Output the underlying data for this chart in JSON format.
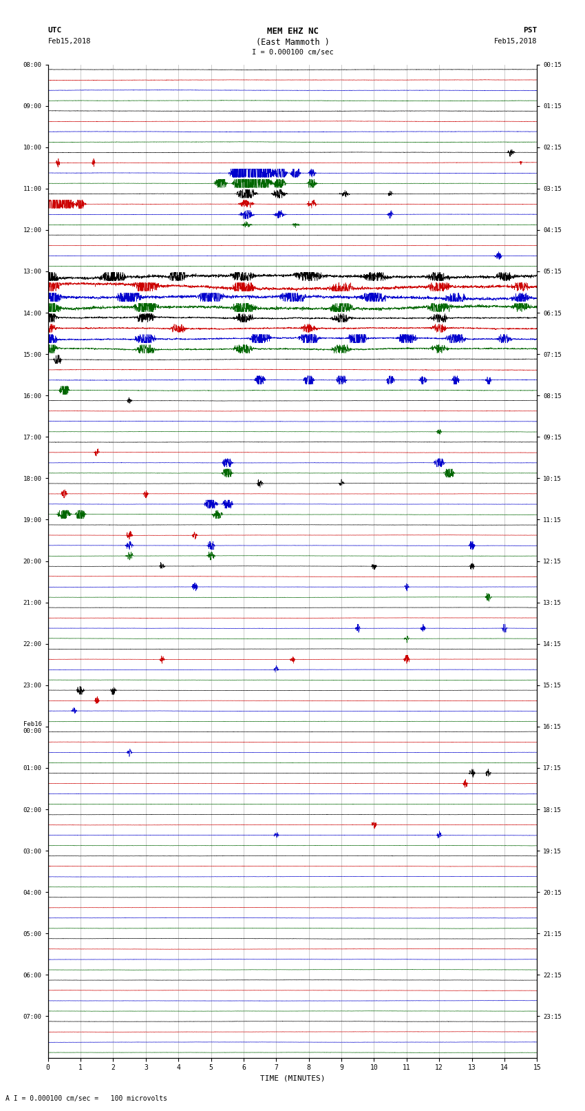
{
  "title_line1": "MEM EHZ NC",
  "title_line2": "(East Mammoth )",
  "scale_label": "I = 0.000100 cm/sec",
  "bottom_label": "A I = 0.000100 cm/sec =   100 microvolts",
  "xlabel": "TIME (MINUTES)",
  "utc_left": "UTC",
  "utc_date": "Feb15,2018",
  "pst_right": "PST",
  "pst_date": "Feb15,2018",
  "rows": 96,
  "colors": [
    "#000000",
    "#cc0000",
    "#0000cc",
    "#006600"
  ],
  "bg_color": "#ffffff",
  "grid_color": "#999999",
  "xmin": 0,
  "xmax": 15,
  "figwidth": 8.5,
  "figheight": 16.13,
  "left_times_utc": [
    "08:00",
    "",
    "",
    "",
    "09:00",
    "",
    "",
    "",
    "10:00",
    "",
    "",
    "",
    "11:00",
    "",
    "",
    "",
    "12:00",
    "",
    "",
    "",
    "13:00",
    "",
    "",
    "",
    "14:00",
    "",
    "",
    "",
    "15:00",
    "",
    "",
    "",
    "16:00",
    "",
    "",
    "",
    "17:00",
    "",
    "",
    "",
    "18:00",
    "",
    "",
    "",
    "19:00",
    "",
    "",
    "",
    "20:00",
    "",
    "",
    "",
    "21:00",
    "",
    "",
    "",
    "22:00",
    "",
    "",
    "",
    "23:00",
    "",
    "",
    "",
    "Feb16\n00:00",
    "",
    "",
    "",
    "01:00",
    "",
    "",
    "",
    "02:00",
    "",
    "",
    "",
    "03:00",
    "",
    "",
    "",
    "04:00",
    "",
    "",
    "",
    "05:00",
    "",
    "",
    "",
    "06:00",
    "",
    "",
    "",
    "07:00",
    "",
    "",
    ""
  ],
  "right_times_pst": [
    "00:15",
    "",
    "",
    "",
    "01:15",
    "",
    "",
    "",
    "02:15",
    "",
    "",
    "",
    "03:15",
    "",
    "",
    "",
    "04:15",
    "",
    "",
    "",
    "05:15",
    "",
    "",
    "",
    "06:15",
    "",
    "",
    "",
    "07:15",
    "",
    "",
    "",
    "08:15",
    "",
    "",
    "",
    "09:15",
    "",
    "",
    "",
    "10:15",
    "",
    "",
    "",
    "11:15",
    "",
    "",
    "",
    "12:15",
    "",
    "",
    "",
    "13:15",
    "",
    "",
    "",
    "14:15",
    "",
    "",
    "",
    "15:15",
    "",
    "",
    "",
    "16:15",
    "",
    "",
    "",
    "17:15",
    "",
    "",
    "",
    "18:15",
    "",
    "",
    "",
    "19:15",
    "",
    "",
    "",
    "20:15",
    "",
    "",
    "",
    "21:15",
    "",
    "",
    "",
    "22:15",
    "",
    "",
    "",
    "23:15",
    "",
    "",
    ""
  ]
}
